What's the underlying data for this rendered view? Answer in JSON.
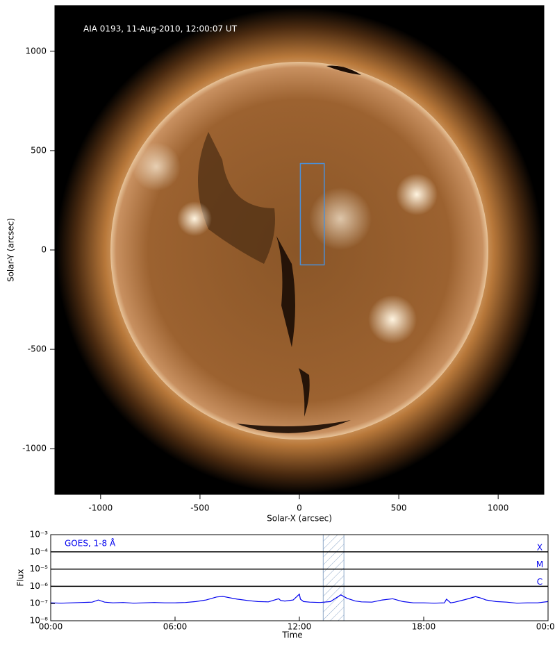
{
  "chart_data": [
    {
      "type": "image",
      "annotation": "AIA 0193, 11-Aug-2010, 12:00:07 UT",
      "xlabel": "Solar-X (arcsec)",
      "ylabel": "Solar-Y (arcsec)",
      "xlim": [
        -1230,
        1230
      ],
      "ylim": [
        -1230,
        1230
      ],
      "xticks": [
        -1000,
        -500,
        0,
        500,
        1000
      ],
      "yticks": [
        -1000,
        -500,
        0,
        500,
        1000
      ],
      "region": {
        "x": [
          5,
          125
        ],
        "y": [
          -75,
          435
        ],
        "color": "#4a90d9"
      }
    },
    {
      "type": "line",
      "log_y": true,
      "ylabel": "Flux",
      "xlabel": "Time",
      "xlim": [
        0,
        24
      ],
      "ylim": [
        1e-08,
        0.001
      ],
      "xticks": [
        {
          "value": 0,
          "label": "00:00"
        },
        {
          "value": 6,
          "label": "06:00"
        },
        {
          "value": 12,
          "label": "12:00"
        },
        {
          "value": 18,
          "label": "18:00"
        },
        {
          "value": 24,
          "label": "00:00"
        }
      ],
      "yticks": [
        {
          "value": 1e-08,
          "label": "10⁻⁸"
        },
        {
          "value": 1e-07,
          "label": "10⁻⁷"
        },
        {
          "value": 1e-06,
          "label": "10⁻⁶"
        },
        {
          "value": 1e-05,
          "label": "10⁻⁵"
        },
        {
          "value": 0.0001,
          "label": "10⁻⁴"
        },
        {
          "value": 0.001,
          "label": "10⁻³"
        }
      ],
      "levels": [
        {
          "value": 0.0001,
          "label": "X"
        },
        {
          "value": 1e-05,
          "label": "M"
        },
        {
          "value": 1e-06,
          "label": "C"
        }
      ],
      "highlight": [
        13.15,
        14.15
      ],
      "highlight_color": "#8fa8c8",
      "x": [
        0,
        0.5,
        1,
        1.5,
        2,
        2.3,
        2.6,
        3,
        3.5,
        4,
        4.5,
        5,
        5.5,
        6,
        6.5,
        7,
        7.5,
        8,
        8.3,
        8.6,
        9,
        9.5,
        10,
        10.5,
        11,
        11.1,
        11.3,
        11.7,
        12,
        12.05,
        12.2,
        12.5,
        13,
        13.5,
        14,
        14.3,
        14.7,
        15,
        15.5,
        16,
        16.5,
        16.8,
        17,
        17.5,
        18,
        18.5,
        19,
        19.1,
        19.3,
        19.5,
        20,
        20.5,
        20.8,
        21,
        21.5,
        22,
        22.5,
        23,
        23.5,
        24
      ],
      "series": [
        {
          "name": "GOES, 1-8 Å",
          "color": "#0000ee",
          "values": [
            1.1e-07,
            1.05e-07,
            1.1e-07,
            1.15e-07,
            1.2e-07,
            1.6e-07,
            1.2e-07,
            1.1e-07,
            1.15e-07,
            1.05e-07,
            1.1e-07,
            1.15e-07,
            1.1e-07,
            1.1e-07,
            1.15e-07,
            1.3e-07,
            1.6e-07,
            2.4e-07,
            2.6e-07,
            2.2e-07,
            1.8e-07,
            1.5e-07,
            1.3e-07,
            1.25e-07,
            1.9e-07,
            1.5e-07,
            1.4e-07,
            1.6e-07,
            3.5e-07,
            1.8e-07,
            1.3e-07,
            1.2e-07,
            1.15e-07,
            1.3e-07,
            3.2e-07,
            2e-07,
            1.4e-07,
            1.25e-07,
            1.2e-07,
            1.6e-07,
            1.9e-07,
            1.5e-07,
            1.3e-07,
            1.1e-07,
            1.1e-07,
            1.05e-07,
            1.1e-07,
            1.8e-07,
            1.1e-07,
            1.2e-07,
            1.7e-07,
            2.5e-07,
            2e-07,
            1.6e-07,
            1.3e-07,
            1.2e-07,
            1.05e-07,
            1.1e-07,
            1.1e-07,
            1.3e-07
          ]
        }
      ]
    }
  ]
}
